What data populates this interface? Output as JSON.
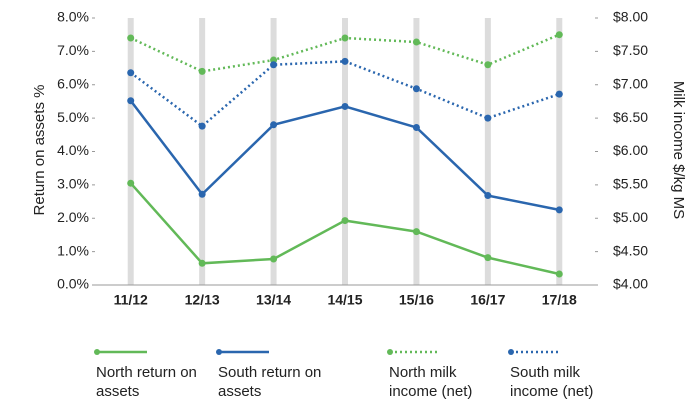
{
  "chart_data": {
    "type": "line",
    "categories": [
      "11/12",
      "12/13",
      "13/14",
      "14/15",
      "15/16",
      "16/17",
      "17/18"
    ],
    "y_label": "Return on assets %",
    "y2_label": "Milk income $/kg MS",
    "ylim": [
      0,
      8
    ],
    "yticks": [
      {
        "value": 0,
        "label": "0.0%"
      },
      {
        "value": 1,
        "label": "1.0%"
      },
      {
        "value": 2,
        "label": "2.0%"
      },
      {
        "value": 3,
        "label": "3.0%"
      },
      {
        "value": 4,
        "label": "4.0%"
      },
      {
        "value": 5,
        "label": "5.0%"
      },
      {
        "value": 6,
        "label": "6.0%"
      },
      {
        "value": 7,
        "label": "7.0%"
      },
      {
        "value": 8,
        "label": "8.0%"
      }
    ],
    "y2lim": [
      4,
      8
    ],
    "y2ticks": [
      {
        "value": 4,
        "label": "$4.00"
      },
      {
        "value": 4.5,
        "label": "$4.50"
      },
      {
        "value": 5,
        "label": "$5.00"
      },
      {
        "value": 5.5,
        "label": "$5.50"
      },
      {
        "value": 6,
        "label": "$6.00"
      },
      {
        "value": 6.5,
        "label": "$6.50"
      },
      {
        "value": 7,
        "label": "$7.00"
      },
      {
        "value": 7.5,
        "label": "$7.50"
      },
      {
        "value": 8,
        "label": "$8.00"
      }
    ],
    "series": [
      {
        "name": "North return on assets",
        "color": "#62b958",
        "style": "solid",
        "values": [
          3.05,
          0.65,
          0.78,
          1.93,
          1.6,
          0.82,
          0.33
        ]
      },
      {
        "name": "South return on assets",
        "color": "#2a66ae",
        "style": "solid",
        "values": [
          5.52,
          2.72,
          4.8,
          5.35,
          4.72,
          2.68,
          2.25
        ]
      },
      {
        "name": "North milk income (net)",
        "color": "#62b958",
        "style": "dotted",
        "axis": "y2",
        "values": [
          7.7,
          7.2,
          7.37,
          7.7,
          7.64,
          7.3,
          7.75
        ]
      },
      {
        "name": "South milk income (net)",
        "color": "#2a66ae",
        "style": "dotted",
        "axis": "y2",
        "values": [
          7.18,
          6.38,
          7.3,
          7.35,
          6.94,
          6.5,
          6.86
        ]
      }
    ]
  }
}
